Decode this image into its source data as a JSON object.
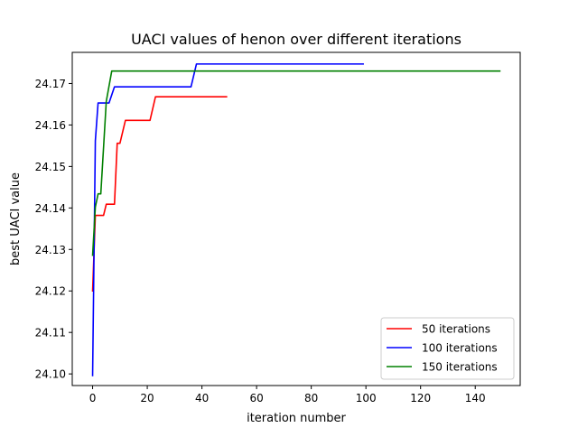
{
  "chart_data": {
    "type": "line",
    "title": "UACI values of henon over different iterations",
    "xlabel": "iteration number",
    "ylabel": "best UACI value",
    "xlim": [
      -7.45,
      156.45
    ],
    "ylim": [
      24.0972,
      24.1775
    ],
    "xticks": [
      0,
      20,
      40,
      60,
      80,
      100,
      120,
      140
    ],
    "xtick_labels": [
      "0",
      "20",
      "40",
      "60",
      "80",
      "100",
      "120",
      "140"
    ],
    "yticks": [
      24.1,
      24.11,
      24.12,
      24.13,
      24.14,
      24.15,
      24.16,
      24.17
    ],
    "ytick_labels": [
      "24.10",
      "24.11",
      "24.12",
      "24.13",
      "24.14",
      "24.15",
      "24.16",
      "24.17"
    ],
    "grid": false,
    "legend_position": "lower-right",
    "series": [
      {
        "name": "50 iterations",
        "color": "#ff0000",
        "x": [
          0,
          1,
          4,
          5,
          8,
          9,
          10,
          12,
          13,
          21,
          23,
          49
        ],
        "y": [
          24.12,
          24.1382,
          24.1382,
          24.1409,
          24.1409,
          24.1556,
          24.1556,
          24.1611,
          24.1611,
          24.1611,
          24.1668,
          24.1668
        ]
      },
      {
        "name": "100 iterations",
        "color": "#0000ff",
        "x": [
          0,
          1,
          2,
          6,
          8,
          36,
          38,
          99
        ],
        "y": [
          24.0996,
          24.1562,
          24.1653,
          24.1653,
          24.1692,
          24.1692,
          24.1747,
          24.1747
        ]
      },
      {
        "name": "150 iterations",
        "color": "#008000",
        "x": [
          0,
          1,
          2,
          3,
          5,
          7,
          149
        ],
        "y": [
          24.1286,
          24.1402,
          24.1434,
          24.1434,
          24.1657,
          24.173,
          24.173
        ]
      }
    ]
  }
}
